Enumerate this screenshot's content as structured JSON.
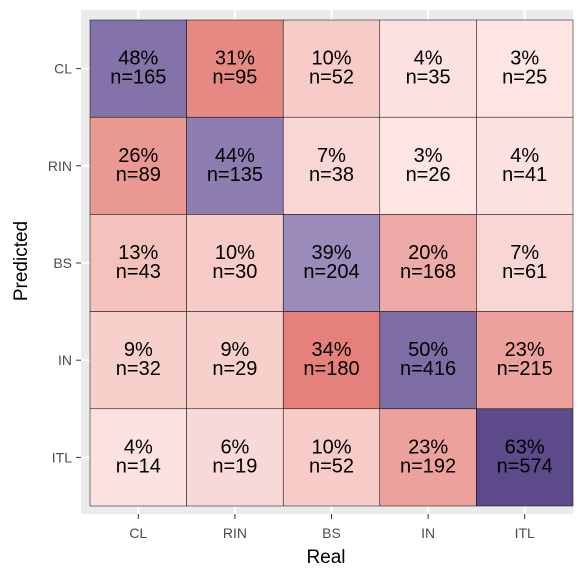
{
  "chart_data": {
    "type": "heatmap",
    "xlabel": "Real",
    "ylabel": "Predicted",
    "x_categories": [
      "CL",
      "RIN",
      "BS",
      "IN",
      "ITL"
    ],
    "y_categories": [
      "CL",
      "RIN",
      "BS",
      "IN",
      "ITL"
    ],
    "cells": [
      [
        {
          "pct": "48%",
          "n": "n=165",
          "value": 48
        },
        {
          "pct": "31%",
          "n": "n=95",
          "value": 31
        },
        {
          "pct": "10%",
          "n": "n=52",
          "value": 10
        },
        {
          "pct": "4%",
          "n": "n=35",
          "value": 4
        },
        {
          "pct": "3%",
          "n": "n=25",
          "value": 3
        }
      ],
      [
        {
          "pct": "26%",
          "n": "n=89",
          "value": 26
        },
        {
          "pct": "44%",
          "n": "n=135",
          "value": 44
        },
        {
          "pct": "7%",
          "n": "n=38",
          "value": 7
        },
        {
          "pct": "3%",
          "n": "n=26",
          "value": 3
        },
        {
          "pct": "4%",
          "n": "n=41",
          "value": 4
        }
      ],
      [
        {
          "pct": "13%",
          "n": "n=43",
          "value": 13
        },
        {
          "pct": "10%",
          "n": "n=30",
          "value": 10
        },
        {
          "pct": "39%",
          "n": "n=204",
          "value": 39
        },
        {
          "pct": "20%",
          "n": "n=168",
          "value": 20
        },
        {
          "pct": "7%",
          "n": "n=61",
          "value": 7
        }
      ],
      [
        {
          "pct": "9%",
          "n": "n=32",
          "value": 9
        },
        {
          "pct": "9%",
          "n": "n=29",
          "value": 9
        },
        {
          "pct": "34%",
          "n": "n=180",
          "value": 34
        },
        {
          "pct": "50%",
          "n": "n=416",
          "value": 50
        },
        {
          "pct": "23%",
          "n": "n=215",
          "value": 23
        }
      ],
      [
        {
          "pct": "4%",
          "n": "n=14",
          "value": 4
        },
        {
          "pct": "6%",
          "n": "n=19",
          "value": 6
        },
        {
          "pct": "10%",
          "n": "n=52",
          "value": 10
        },
        {
          "pct": "23%",
          "n": "n=192",
          "value": 23
        },
        {
          "pct": "63%",
          "n": "n=574",
          "value": 63
        }
      ]
    ],
    "colors": {
      "panel_background": "#ebebeb",
      "grid": "#ffffff",
      "offdiag_low": "#fff4f2",
      "offdiag_high": "#e5807a",
      "diag_low": "#9a8bbb",
      "diag_high": "#5c4a8a",
      "cell_border": "#000000"
    }
  }
}
